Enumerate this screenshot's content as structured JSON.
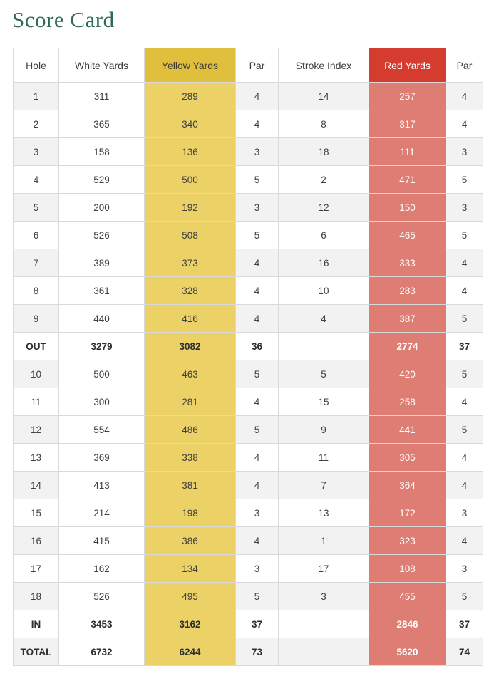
{
  "page": {
    "title": "Score Card"
  },
  "colors": {
    "title_green": "#2e6b51",
    "yellow_header": "#e0bf3d",
    "yellow_cell": "#ecd166",
    "red_header": "#d63b30",
    "red_cell": "#dd7d73",
    "row_stripe": "#f2f2f2",
    "cell_border": "#d9d9d9",
    "text": "#404040"
  },
  "table": {
    "columns": [
      {
        "key": "hole",
        "label": "Hole"
      },
      {
        "key": "white",
        "label": "White Yards"
      },
      {
        "key": "yellow",
        "label": "Yellow Yards"
      },
      {
        "key": "par1",
        "label": "Par"
      },
      {
        "key": "si",
        "label": "Stroke Index"
      },
      {
        "key": "red",
        "label": "Red Yards"
      },
      {
        "key": "par2",
        "label": "Par"
      }
    ],
    "rows": [
      {
        "hole": "1",
        "white": "311",
        "yellow": "289",
        "par1": "4",
        "si": "14",
        "red": "257",
        "par2": "4",
        "bold": false
      },
      {
        "hole": "2",
        "white": "365",
        "yellow": "340",
        "par1": "4",
        "si": "8",
        "red": "317",
        "par2": "4",
        "bold": false
      },
      {
        "hole": "3",
        "white": "158",
        "yellow": "136",
        "par1": "3",
        "si": "18",
        "red": "111",
        "par2": "3",
        "bold": false
      },
      {
        "hole": "4",
        "white": "529",
        "yellow": "500",
        "par1": "5",
        "si": "2",
        "red": "471",
        "par2": "5",
        "bold": false
      },
      {
        "hole": "5",
        "white": "200",
        "yellow": "192",
        "par1": "3",
        "si": "12",
        "red": "150",
        "par2": "3",
        "bold": false
      },
      {
        "hole": "6",
        "white": "526",
        "yellow": "508",
        "par1": "5",
        "si": "6",
        "red": "465",
        "par2": "5",
        "bold": false
      },
      {
        "hole": "7",
        "white": "389",
        "yellow": "373",
        "par1": "4",
        "si": "16",
        "red": "333",
        "par2": "4",
        "bold": false
      },
      {
        "hole": "8",
        "white": "361",
        "yellow": "328",
        "par1": "4",
        "si": "10",
        "red": "283",
        "par2": "4",
        "bold": false
      },
      {
        "hole": "9",
        "white": "440",
        "yellow": "416",
        "par1": "4",
        "si": "4",
        "red": "387",
        "par2": "5",
        "bold": false
      },
      {
        "hole": "OUT",
        "white": "3279",
        "yellow": "3082",
        "par1": "36",
        "si": "",
        "red": "2774",
        "par2": "37",
        "bold": true
      },
      {
        "hole": "10",
        "white": "500",
        "yellow": "463",
        "par1": "5",
        "si": "5",
        "red": "420",
        "par2": "5",
        "bold": false
      },
      {
        "hole": "11",
        "white": "300",
        "yellow": "281",
        "par1": "4",
        "si": "15",
        "red": "258",
        "par2": "4",
        "bold": false
      },
      {
        "hole": "12",
        "white": "554",
        "yellow": "486",
        "par1": "5",
        "si": "9",
        "red": "441",
        "par2": "5",
        "bold": false
      },
      {
        "hole": "13",
        "white": "369",
        "yellow": "338",
        "par1": "4",
        "si": "11",
        "red": "305",
        "par2": "4",
        "bold": false
      },
      {
        "hole": "14",
        "white": "413",
        "yellow": "381",
        "par1": "4",
        "si": "7",
        "red": "364",
        "par2": "4",
        "bold": false
      },
      {
        "hole": "15",
        "white": "214",
        "yellow": "198",
        "par1": "3",
        "si": "13",
        "red": "172",
        "par2": "3",
        "bold": false
      },
      {
        "hole": "16",
        "white": "415",
        "yellow": "386",
        "par1": "4",
        "si": "1",
        "red": "323",
        "par2": "4",
        "bold": false
      },
      {
        "hole": "17",
        "white": "162",
        "yellow": "134",
        "par1": "3",
        "si": "17",
        "red": "108",
        "par2": "3",
        "bold": false
      },
      {
        "hole": "18",
        "white": "526",
        "yellow": "495",
        "par1": "5",
        "si": "3",
        "red": "455",
        "par2": "5",
        "bold": false
      },
      {
        "hole": "IN",
        "white": "3453",
        "yellow": "3162",
        "par1": "37",
        "si": "",
        "red": "2846",
        "par2": "37",
        "bold": true
      },
      {
        "hole": "TOTAL",
        "white": "6732",
        "yellow": "6244",
        "par1": "73",
        "si": "",
        "red": "5620",
        "par2": "74",
        "bold": true
      }
    ]
  }
}
